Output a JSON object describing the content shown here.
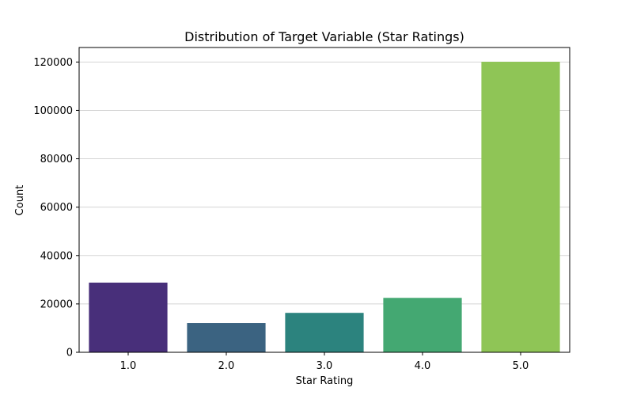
{
  "chart_data": {
    "type": "bar",
    "title": "Distribution of Target Variable (Star Ratings)",
    "xlabel": "Star Rating",
    "ylabel": "Count",
    "categories": [
      "1.0",
      "2.0",
      "3.0",
      "4.0",
      "5.0"
    ],
    "values": [
      28800,
      12100,
      16300,
      22500,
      120100
    ],
    "colors": [
      "#482f7a",
      "#3b6381",
      "#2c837e",
      "#44a872",
      "#8fc556"
    ],
    "ylim": [
      0,
      126000
    ],
    "yticks": [
      0,
      20000,
      40000,
      60000,
      80000,
      100000,
      120000
    ],
    "grid": {
      "y": true,
      "x": false,
      "color": "#d5d5d5"
    },
    "legend": "none"
  }
}
